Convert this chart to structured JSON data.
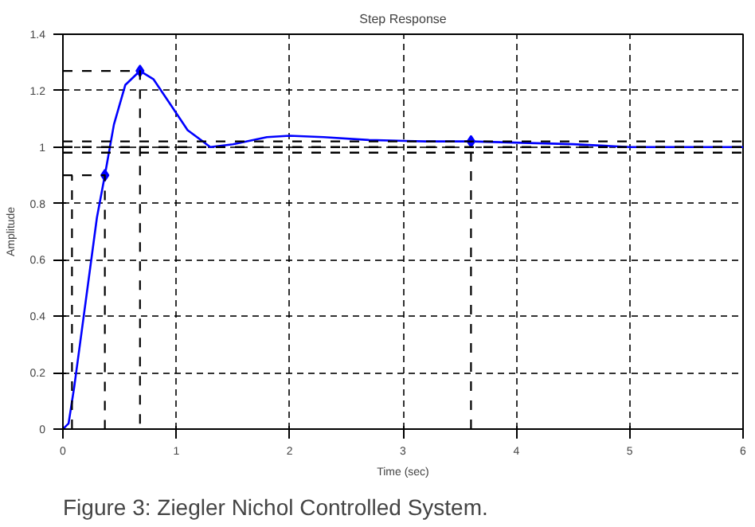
{
  "chart_data": {
    "type": "line",
    "title": "Step Response",
    "xlabel": "Time (sec)",
    "ylabel": "Amplitude",
    "annotations": [
      "Figure 3: Ziegler Nichol Controlled System."
    ],
    "xlim": [
      0,
      6
    ],
    "xticks": [
      0,
      1,
      2,
      3,
      4,
      5,
      6
    ],
    "ylim": [
      0,
      1.4
    ],
    "yticks": [
      0,
      0.2,
      0.4,
      0.6,
      0.8,
      1,
      1.2,
      1.4
    ],
    "grid": true,
    "series": [
      {
        "color": "#0000ff",
        "line_style": "solid",
        "x": [
          0,
          0.05,
          0.1,
          0.2,
          0.3,
          0.37,
          0.45,
          0.55,
          0.68,
          0.8,
          0.95,
          1.1,
          1.3,
          1.5,
          1.8,
          2.0,
          2.3,
          2.7,
          3.2,
          3.6,
          4.5,
          5,
          6
        ],
        "values": [
          0,
          0.02,
          0.15,
          0.45,
          0.75,
          0.9,
          1.08,
          1.22,
          1.27,
          1.24,
          1.15,
          1.06,
          1.0,
          1.01,
          1.035,
          1.04,
          1.035,
          1.025,
          1.02,
          1.02,
          1.01,
          1.0,
          1.0
        ]
      },
      {
        "type": "scatter",
        "color": "#0000ff",
        "marker": "diamond",
        "x": [
          0.37,
          0.68,
          3.6
        ],
        "values": [
          0.9,
          1.27,
          1.02
        ]
      },
      {
        "color": "#000000",
        "line_style": "dashed",
        "x": [
          0,
          0.68,
          0.68
        ],
        "values": [
          1.27,
          1.27,
          0
        ]
      },
      {
        "color": "#000000",
        "line_style": "dashed",
        "x": [
          0,
          0.37,
          0.37
        ],
        "values": [
          0.9,
          0.9,
          0
        ]
      },
      {
        "color": "#000000",
        "line_style": "dashed",
        "x": [
          0.08,
          0.08
        ],
        "values": [
          0,
          0.9
        ]
      },
      {
        "color": "#000000",
        "line_style": "dashed",
        "x": [
          3.6,
          3.6
        ],
        "values": [
          0,
          1.02
        ]
      }
    ],
    "ref_lines": [
      {
        "axis": "y",
        "value": 1.02,
        "color": "#000000",
        "line_style": "dashed"
      },
      {
        "axis": "y",
        "value": 1.0,
        "color": "#000000",
        "line_style": "dashed"
      },
      {
        "axis": "y",
        "value": 0.98,
        "color": "#000000",
        "line_style": "dashed"
      }
    ]
  }
}
